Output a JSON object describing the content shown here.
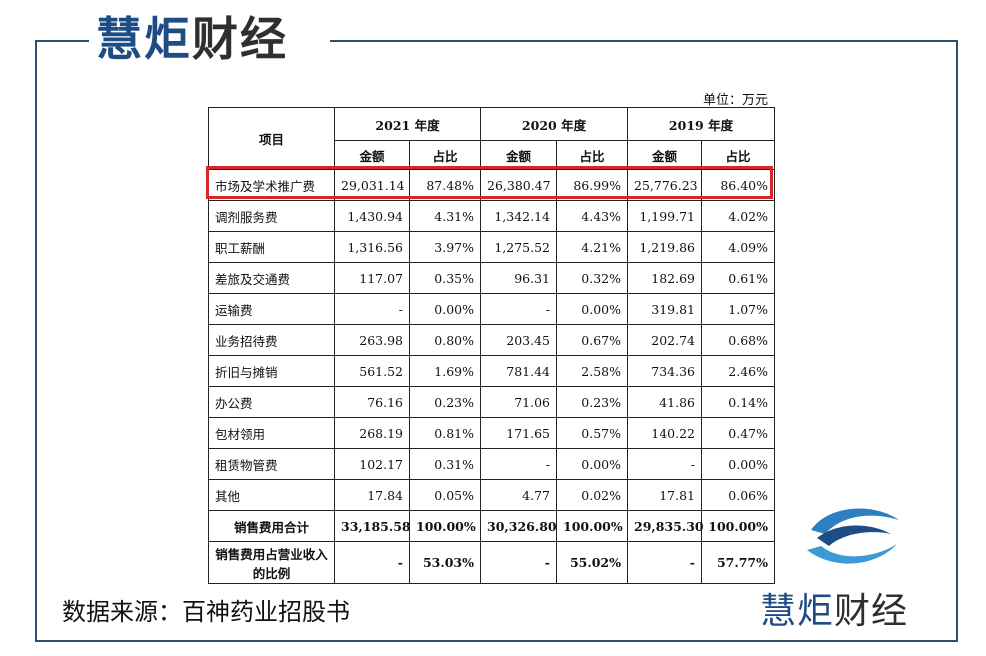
{
  "brand": {
    "part1": "慧炬",
    "part2": "财经"
  },
  "unit_label": "单位：万元",
  "table": {
    "header_item": "项目",
    "years": [
      "2021 年度",
      "2020 年度",
      "2019 年度"
    ],
    "sub_headers": [
      "金额",
      "占比"
    ],
    "rows": [
      {
        "name": "市场及学术推广费",
        "cells": [
          "29,031.14",
          "87.48%",
          "26,380.47",
          "86.99%",
          "25,776.23",
          "86.40%"
        ]
      },
      {
        "name": "调剂服务费",
        "cells": [
          "1,430.94",
          "4.31%",
          "1,342.14",
          "4.43%",
          "1,199.71",
          "4.02%"
        ]
      },
      {
        "name": "职工薪酬",
        "cells": [
          "1,316.56",
          "3.97%",
          "1,275.52",
          "4.21%",
          "1,219.86",
          "4.09%"
        ]
      },
      {
        "name": "差旅及交通费",
        "cells": [
          "117.07",
          "0.35%",
          "96.31",
          "0.32%",
          "182.69",
          "0.61%"
        ]
      },
      {
        "name": "运输费",
        "cells": [
          "-",
          "0.00%",
          "-",
          "0.00%",
          "319.81",
          "1.07%"
        ]
      },
      {
        "name": "业务招待费",
        "cells": [
          "263.98",
          "0.80%",
          "203.45",
          "0.67%",
          "202.74",
          "0.68%"
        ]
      },
      {
        "name": "折旧与摊销",
        "cells": [
          "561.52",
          "1.69%",
          "781.44",
          "2.58%",
          "734.36",
          "2.46%"
        ]
      },
      {
        "name": "办公费",
        "cells": [
          "76.16",
          "0.23%",
          "71.06",
          "0.23%",
          "41.86",
          "0.14%"
        ]
      },
      {
        "name": "包材领用",
        "cells": [
          "268.19",
          "0.81%",
          "171.65",
          "0.57%",
          "140.22",
          "0.47%"
        ]
      },
      {
        "name": "租赁物管费",
        "cells": [
          "102.17",
          "0.31%",
          "-",
          "0.00%",
          "-",
          "0.00%"
        ]
      },
      {
        "name": "其他",
        "cells": [
          "17.84",
          "0.05%",
          "4.77",
          "0.02%",
          "17.81",
          "0.06%"
        ]
      }
    ],
    "total": {
      "name": "销售费用合计",
      "cells": [
        "33,185.58",
        "100.00%",
        "30,326.80",
        "100.00%",
        "29,835.30",
        "100.00%"
      ]
    },
    "ratio": {
      "name": "销售费用占营业收入的比例",
      "cells": [
        "-",
        "53.03%",
        "-",
        "55.02%",
        "-",
        "57.77%"
      ]
    }
  },
  "source_text": "数据来源：百神药业招股书",
  "colors": {
    "brand_blue": "#1e4c84",
    "highlight_red": "#d8262b",
    "frame": "#2f4e74"
  }
}
